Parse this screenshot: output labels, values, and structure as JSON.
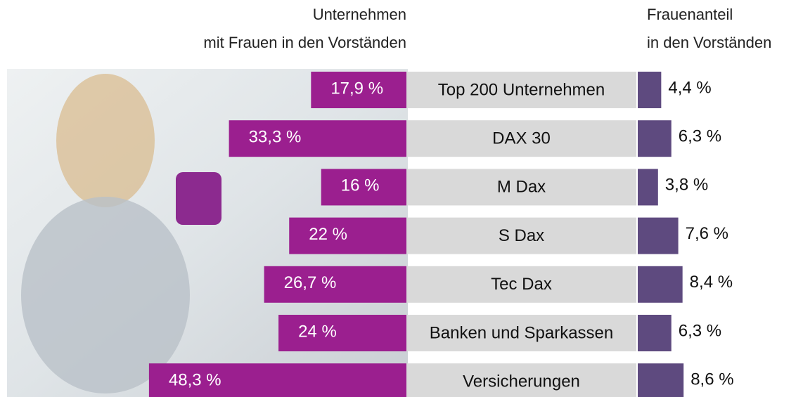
{
  "chart_data": {
    "type": "bar",
    "categories": [
      "Top 200 Unternehmen",
      "DAX 30",
      "M Dax",
      "S Dax",
      "Tec Dax",
      "Banken und Sparkassen",
      "Versicherungen"
    ],
    "series": [
      {
        "name": "Unternehmen\nmit Frauen in den Vorständen",
        "color": "#9b1f8f",
        "values": [
          17.9,
          33.3,
          16,
          22,
          26.7,
          24,
          48.3
        ],
        "value_labels": [
          "17,9 %",
          "33,3 %",
          "16 %",
          "22 %",
          "26,7 %",
          "24 %",
          "48,3 %"
        ]
      },
      {
        "name": "Frauenanteil\nin den Vorständen",
        "color": "#5e4a7f",
        "values": [
          4.4,
          6.3,
          3.8,
          7.6,
          8.4,
          6.3,
          8.6
        ],
        "value_labels": [
          "4,4 %",
          "6,3 %",
          "3,8 %",
          "7,6 %",
          "8,4 %",
          "6,3 %",
          "8,6 %"
        ]
      }
    ]
  }
}
